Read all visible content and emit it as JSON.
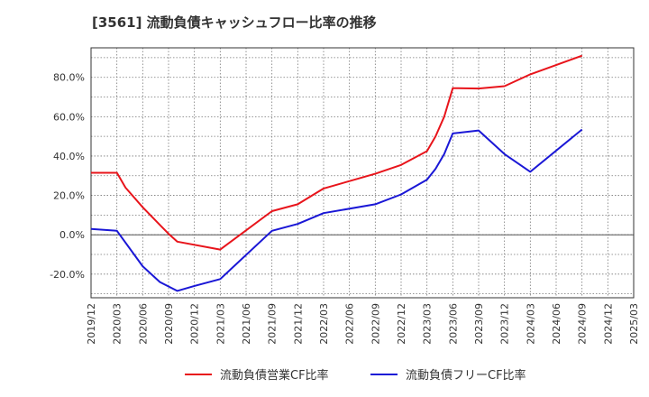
{
  "chart_data": {
    "type": "line",
    "title": "[3561]  流動負債キャッシュフロー比率の推移",
    "xlabel": "",
    "ylabel": "",
    "x_ticks": [
      "2019/12",
      "2020/03",
      "2020/06",
      "2020/09",
      "2020/12",
      "2021/03",
      "2021/06",
      "2021/09",
      "2021/12",
      "2022/03",
      "2022/06",
      "2022/09",
      "2022/12",
      "2023/03",
      "2023/06",
      "2023/09",
      "2023/12",
      "2024/03",
      "2024/06",
      "2024/09",
      "2024/12",
      "2025/03"
    ],
    "y_ticks": [
      -20,
      0,
      20,
      40,
      60,
      80
    ],
    "y_tick_labels": [
      "-20.0%",
      "0.0%",
      "20.0%",
      "40.0%",
      "60.0%",
      "80.0%"
    ],
    "ylim": [
      -32,
      95
    ],
    "grid": true,
    "legend_position": "bottom",
    "series": [
      {
        "name": "流動負債営業CF比率",
        "color": "#e8141b",
        "points": [
          [
            "2019/12",
            31.5
          ],
          [
            "2020/03",
            31.5
          ],
          [
            "2020/04",
            24.0
          ],
          [
            "2020/06",
            14.0
          ],
          [
            "2020/08",
            5.0
          ],
          [
            "2020/09",
            0.5
          ],
          [
            "2020/10",
            -3.5
          ],
          [
            "2021/03",
            -7.5
          ],
          [
            "2021/09",
            12.0
          ],
          [
            "2021/12",
            15.5
          ],
          [
            "2022/03",
            23.5
          ],
          [
            "2022/09",
            31.0
          ],
          [
            "2022/12",
            35.5
          ],
          [
            "2023/03",
            42.5
          ],
          [
            "2023/04",
            50.0
          ],
          [
            "2023/05",
            60.0
          ],
          [
            "2023/06",
            74.5
          ],
          [
            "2023/09",
            74.3
          ],
          [
            "2023/12",
            75.5
          ],
          [
            "2024/03",
            81.5
          ],
          [
            "2024/09",
            91.0
          ]
        ]
      },
      {
        "name": "流動負債フリーCF比率",
        "color": "#1a17d6",
        "points": [
          [
            "2019/12",
            3.0
          ],
          [
            "2020/03",
            2.0
          ],
          [
            "2020/06",
            -16.0
          ],
          [
            "2020/08",
            -24.0
          ],
          [
            "2020/10",
            -28.5
          ],
          [
            "2020/12",
            -26.0
          ],
          [
            "2021/03",
            -22.5
          ],
          [
            "2021/09",
            2.0
          ],
          [
            "2021/12",
            5.5
          ],
          [
            "2022/03",
            11.0
          ],
          [
            "2022/09",
            15.5
          ],
          [
            "2022/12",
            20.5
          ],
          [
            "2023/03",
            28.0
          ],
          [
            "2023/04",
            33.5
          ],
          [
            "2023/05",
            41.0
          ],
          [
            "2023/06",
            51.5
          ],
          [
            "2023/09",
            53.0
          ],
          [
            "2023/12",
            41.0
          ],
          [
            "2024/03",
            32.0
          ],
          [
            "2024/09",
            53.5
          ]
        ]
      }
    ]
  }
}
